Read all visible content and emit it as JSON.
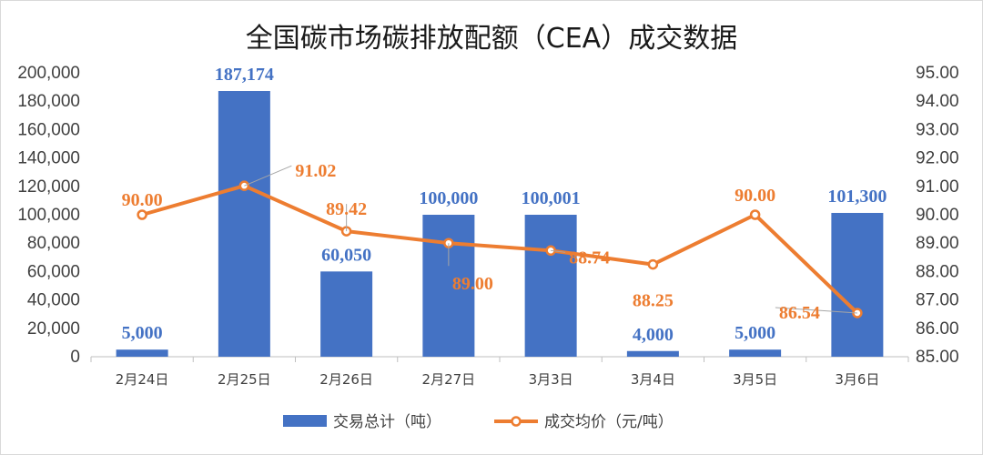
{
  "chart_data": {
    "type": "bar",
    "title": "全国碳市场碳排放配额（CEA）成交数据",
    "categories": [
      "2月24日",
      "2月25日",
      "2月26日",
      "2月27日",
      "3月3日",
      "3月4日",
      "3月5日",
      "3月6日"
    ],
    "series": [
      {
        "name": "交易总计（吨）",
        "type": "bar",
        "axis": "left",
        "color": "#4472c4",
        "values": [
          5000,
          187174,
          60050,
          100000,
          100001,
          4000,
          5000,
          101300
        ],
        "labels": [
          "5,000",
          "187,174",
          "60,050",
          "100,000",
          "100,001",
          "4,000",
          "5,000",
          "101,300"
        ]
      },
      {
        "name": "成交均价（元/吨）",
        "type": "line",
        "axis": "right",
        "color": "#ed7d31",
        "values": [
          90.0,
          91.02,
          89.42,
          89.0,
          88.74,
          88.25,
          90.0,
          86.54
        ],
        "labels": [
          "90.00",
          "91.02",
          "89.42",
          "89.00",
          "88.74",
          "88.25",
          "90.00",
          "86.54"
        ]
      }
    ],
    "left_axis": {
      "ylim": [
        0,
        200000
      ],
      "ticks": [
        0,
        20000,
        40000,
        60000,
        80000,
        100000,
        120000,
        140000,
        160000,
        180000,
        200000
      ],
      "tick_labels": [
        "0",
        "20,000",
        "40,000",
        "60,000",
        "80,000",
        "100,000",
        "120,000",
        "140,000",
        "160,000",
        "180,000",
        "200,000"
      ]
    },
    "right_axis": {
      "ylim": [
        85.0,
        95.0
      ],
      "ticks": [
        85,
        86,
        87,
        88,
        89,
        90,
        91,
        92,
        93,
        94,
        95
      ],
      "tick_labels": [
        "85.00",
        "86.00",
        "87.00",
        "88.00",
        "89.00",
        "90.00",
        "91.00",
        "92.00",
        "93.00",
        "94.00",
        "95.00"
      ]
    },
    "grid": false,
    "legend": "bottom"
  }
}
